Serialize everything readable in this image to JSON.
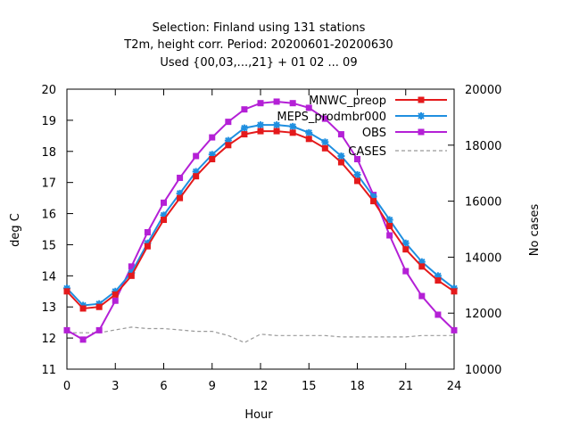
{
  "chart_data": {
    "type": "line",
    "title_lines": [
      "Selection: Finland using   131 stations",
      "T2m, height corr.   Period: 20200601-20200630",
      "Used {00,03,...,21} + 01 02 ... 09"
    ],
    "xlabel": "Hour",
    "ylabel": "deg C",
    "y2label": "No cases",
    "xlim": [
      0,
      24
    ],
    "ylim": [
      11,
      20
    ],
    "y2lim": [
      10000,
      20000
    ],
    "x_ticks": [
      0,
      3,
      6,
      9,
      12,
      15,
      18,
      21,
      24
    ],
    "y_ticks": [
      11,
      12,
      13,
      14,
      15,
      16,
      17,
      18,
      19,
      20
    ],
    "y2_ticks": [
      10000,
      12000,
      14000,
      16000,
      18000,
      20000
    ],
    "grid": false,
    "legend_position": "top-right",
    "x": [
      0,
      1,
      2,
      3,
      4,
      5,
      6,
      7,
      8,
      9,
      10,
      11,
      12,
      13,
      14,
      15,
      16,
      17,
      18,
      19,
      20,
      21,
      22,
      23,
      24
    ],
    "series": [
      {
        "name": "MNWC_preop",
        "color": "#e41a1c",
        "marker": "square",
        "axis": "left",
        "values": [
          13.5,
          12.95,
          13.0,
          13.4,
          14.0,
          14.95,
          15.8,
          16.5,
          17.2,
          17.75,
          18.2,
          18.55,
          18.65,
          18.65,
          18.6,
          18.4,
          18.1,
          17.65,
          17.05,
          16.4,
          15.6,
          14.85,
          14.3,
          13.85,
          13.5
        ]
      },
      {
        "name": "MEPS_prodmbr000",
        "color": "#1f8fe0",
        "marker": "star",
        "axis": "left",
        "values": [
          13.6,
          13.05,
          13.1,
          13.5,
          14.1,
          15.05,
          15.95,
          16.65,
          17.35,
          17.9,
          18.35,
          18.75,
          18.85,
          18.85,
          18.8,
          18.6,
          18.3,
          17.85,
          17.25,
          16.55,
          15.8,
          15.05,
          14.45,
          14.0,
          13.6
        ]
      },
      {
        "name": "OBS",
        "color": "#b420d6",
        "marker": "square",
        "axis": "left",
        "values": [
          12.25,
          11.95,
          12.25,
          13.2,
          14.3,
          15.4,
          16.35,
          17.15,
          17.85,
          18.45,
          18.95,
          19.35,
          19.55,
          19.6,
          19.55,
          19.4,
          19.05,
          18.55,
          17.75,
          16.6,
          15.3,
          14.15,
          13.35,
          12.75,
          12.25
        ]
      },
      {
        "name": "CASES",
        "color": "#999999",
        "marker": "none",
        "axis": "right",
        "dashed": true,
        "values": [
          11300,
          11300,
          11300,
          11400,
          11500,
          11450,
          11450,
          11400,
          11350,
          11350,
          11200,
          10950,
          11250,
          11200,
          11200,
          11200,
          11200,
          11150,
          11150,
          11150,
          11150,
          11150,
          11200,
          11200,
          11200
        ]
      }
    ]
  }
}
